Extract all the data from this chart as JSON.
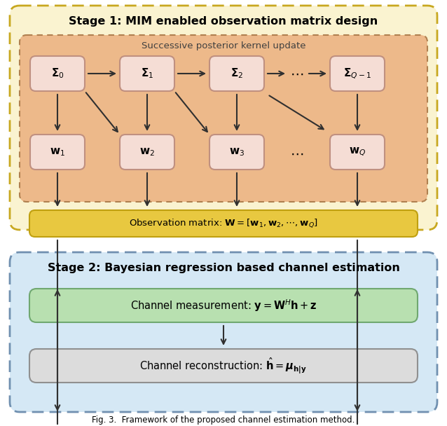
{
  "fig_width": 6.38,
  "fig_height": 6.08,
  "stage1_bg": "#FAF3D0",
  "stage1_border": "#C8A820",
  "stage1_inner_bg": "#EDB98A",
  "stage1_inner_border": "#B08050",
  "sigma_box_bg": "#F5DDD5",
  "sigma_box_border": "#C09080",
  "w_box_bg": "#F5DDD5",
  "w_box_border": "#C09080",
  "obs_box_bg": "#E8C840",
  "obs_box_border": "#C0A010",
  "stage2_bg": "#D5E8F5",
  "stage2_border": "#7090B0",
  "meas_box_bg": "#B8E0B0",
  "meas_box_border": "#70A870",
  "recon_box_bg": "#DCDCDC",
  "recon_box_border": "#909090",
  "arrow_color": "#303030",
  "title1": "Stage 1: MIM enabled observation matrix design",
  "title2": "Stage 2: Bayesian regression based channel estimation",
  "inner_title": "Successive posterior kernel update",
  "obs_text": "Observation matrix: $\\mathbf{W} = [\\mathbf{w}_1, \\mathbf{w}_2, \\cdots, \\mathbf{w}_Q]$",
  "meas_text": "Channel measurement: $\\mathbf{y} = \\mathbf{W}^H\\mathbf{h} + \\mathbf{z}$",
  "recon_text": "Channel reconstruction: $\\hat{\\mathbf{h}} = \\boldsymbol{\\mu}_{\\mathbf{h|y}}$",
  "sigma_labels": [
    "$\\boldsymbol{\\Sigma}_0$",
    "$\\boldsymbol{\\Sigma}_1$",
    "$\\boldsymbol{\\Sigma}_2$",
    "$\\boldsymbol{\\Sigma}_{Q-1}$"
  ],
  "w_labels": [
    "$\\mathbf{w}_1$",
    "$\\mathbf{w}_2$",
    "$\\mathbf{w}_3$",
    "$\\mathbf{w}_Q$"
  ],
  "background": "#FFFFFF",
  "caption": "Fig. 3.  Framework of the proposed channel estimation method."
}
